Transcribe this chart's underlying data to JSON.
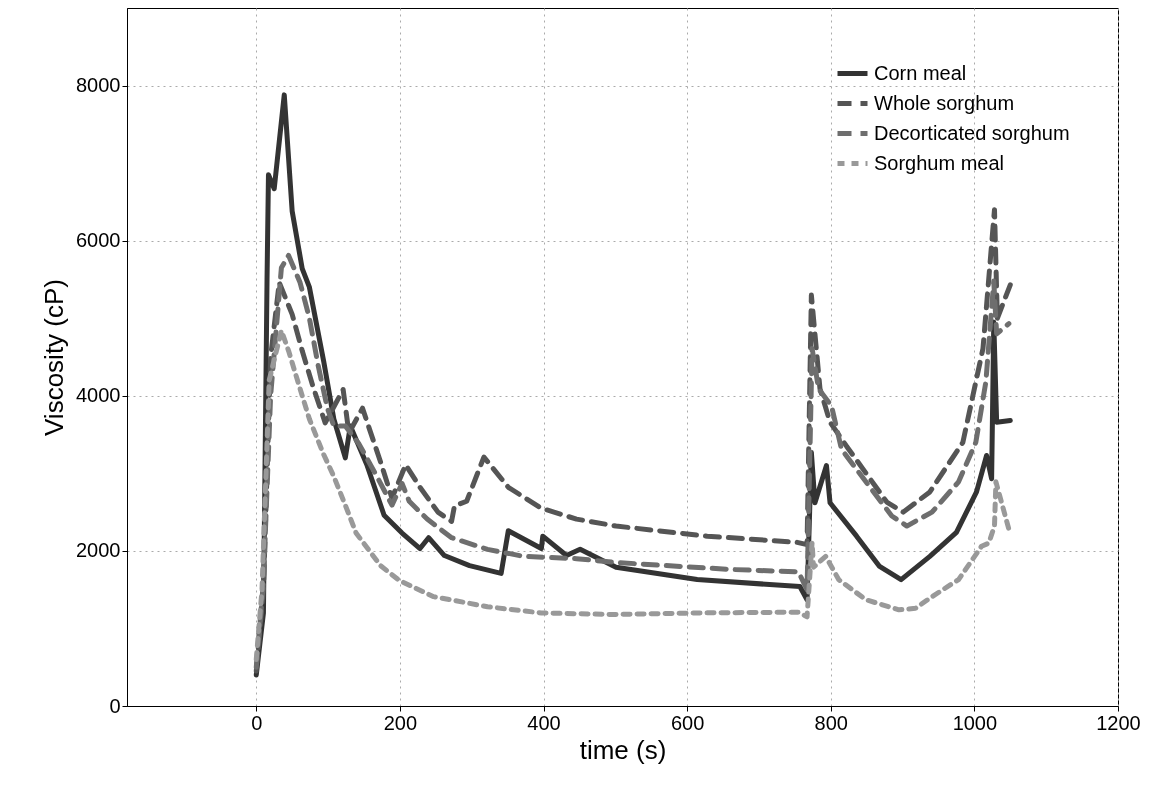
{
  "chart_data": {
    "type": "line",
    "xlabel": "time (s)",
    "ylabel": "Viscosity (cP)",
    "xlim": [
      -180,
      1200
    ],
    "ylim": [
      0,
      9000
    ],
    "xticks": [
      0,
      200,
      400,
      600,
      800,
      1000,
      1200
    ],
    "yticks": [
      0,
      2000,
      4000,
      6000,
      8000
    ],
    "grid": true,
    "legend": "top right",
    "marker": "none",
    "series": [
      {
        "name": "Corn meal",
        "color": "#333333",
        "line_style": "solid",
        "x": [
          0,
          10,
          15,
          17,
          25,
          39,
          50,
          64,
          74,
          94,
          108,
          124,
          131,
          154,
          178,
          203,
          228,
          240,
          262,
          297,
          341,
          351,
          397,
          399,
          432,
          451,
          501,
          614,
          757,
          767,
          773,
          778,
          794,
          799,
          836,
          868,
          898,
          938,
          975,
          1003,
          1017,
          1024,
          1027,
          1031,
          1050
        ],
        "values": [
          400,
          1200,
          5500,
          6850,
          6670,
          7880,
          6380,
          5640,
          5400,
          4440,
          3700,
          3200,
          3610,
          3110,
          2460,
          2230,
          2030,
          2170,
          1940,
          1810,
          1710,
          2260,
          2030,
          2190,
          1940,
          2020,
          1790,
          1630,
          1540,
          1370,
          3270,
          2620,
          3100,
          2620,
          2190,
          1800,
          1630,
          1930,
          2240,
          2760,
          3230,
          2930,
          4950,
          3660,
          3680
        ]
      },
      {
        "name": "Whole sorghum",
        "color": "#555555",
        "line_style": "dashed",
        "x": [
          0,
          10,
          20,
          32,
          50,
          64,
          79,
          96,
          121,
          129,
          148,
          158,
          173,
          189,
          208,
          228,
          253,
          272,
          276,
          293,
          317,
          351,
          397,
          446,
          501,
          628,
          753,
          767,
          773,
          785,
          799,
          822,
          878,
          901,
          938,
          984,
          1012,
          1028,
          1032,
          1050
        ],
        "values": [
          450,
          1500,
          4500,
          5460,
          5050,
          4580,
          4120,
          3650,
          4080,
          3520,
          3840,
          3560,
          3150,
          2680,
          3110,
          2820,
          2500,
          2380,
          2580,
          2640,
          3210,
          2820,
          2550,
          2410,
          2320,
          2190,
          2110,
          2080,
          5300,
          4090,
          3660,
          3350,
          2630,
          2500,
          2760,
          3400,
          4610,
          6400,
          5000,
          5430
        ]
      },
      {
        "name": "Decorticated sorghum",
        "color": "#6e6e6e",
        "line_style": "dashed",
        "x": [
          0,
          10,
          20,
          35,
          45,
          61,
          74,
          86,
          99,
          108,
          124,
          143,
          168,
          189,
          203,
          213,
          238,
          272,
          322,
          372,
          446,
          501,
          662,
          755,
          767,
          774,
          783,
          801,
          815,
          849,
          885,
          906,
          941,
          978,
          1002,
          1016,
          1027,
          1031,
          1048
        ],
        "values": [
          500,
          1600,
          4000,
          5650,
          5810,
          5460,
          5000,
          4400,
          3840,
          3610,
          3610,
          3380,
          2960,
          2590,
          2870,
          2640,
          2410,
          2170,
          2020,
          1930,
          1900,
          1850,
          1760,
          1730,
          1500,
          4610,
          4090,
          3870,
          3310,
          2890,
          2450,
          2320,
          2500,
          2890,
          3400,
          4180,
          5480,
          4800,
          4930
        ]
      },
      {
        "name": "Sorghum meal",
        "color": "#999999",
        "line_style": "dotted",
        "x": [
          0,
          8,
          18,
          35,
          45,
          60,
          74,
          94,
          108,
          124,
          139,
          173,
          199,
          247,
          322,
          397,
          496,
          614,
          755,
          767,
          774,
          776,
          793,
          811,
          849,
          895,
          918,
          941,
          978,
          1010,
          1020,
          1028,
          1030,
          1048
        ],
        "values": [
          600,
          1500,
          4200,
          4840,
          4580,
          4120,
          3700,
          3240,
          2960,
          2590,
          2230,
          1810,
          1620,
          1410,
          1280,
          1200,
          1180,
          1200,
          1210,
          1150,
          2110,
          1790,
          1930,
          1630,
          1370,
          1240,
          1260,
          1410,
          1630,
          2060,
          2100,
          2320,
          2890,
          2280
        ]
      }
    ]
  }
}
